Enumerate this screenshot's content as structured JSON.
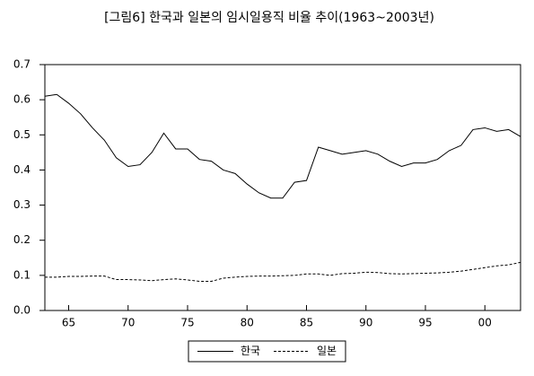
{
  "chart_data": {
    "type": "line",
    "title": "[그림6] 한국과 일본의 임시일용직 비율 추이(1963~2003년)",
    "x": [
      1963,
      1964,
      1965,
      1966,
      1967,
      1968,
      1969,
      1970,
      1971,
      1972,
      1973,
      1974,
      1975,
      1976,
      1977,
      1978,
      1979,
      1980,
      1981,
      1982,
      1983,
      1984,
      1985,
      1986,
      1987,
      1988,
      1989,
      1990,
      1991,
      1992,
      1993,
      1994,
      1995,
      1996,
      1997,
      1998,
      1999,
      2000,
      2001,
      2002,
      2003
    ],
    "series": [
      {
        "name": "한국",
        "color": "#000000",
        "linestyle": "solid",
        "values": [
          0.61,
          0.615,
          0.59,
          0.56,
          0.52,
          0.485,
          0.435,
          0.41,
          0.415,
          0.45,
          0.505,
          0.46,
          0.46,
          0.43,
          0.425,
          0.4,
          0.39,
          0.36,
          0.335,
          0.32,
          0.32,
          0.365,
          0.37,
          0.465,
          0.455,
          0.445,
          0.45,
          0.455,
          0.445,
          0.425,
          0.41,
          0.42,
          0.42,
          0.43,
          0.455,
          0.47,
          0.515,
          0.52,
          0.51,
          0.515,
          0.495
        ]
      },
      {
        "name": "일본",
        "color": "#000000",
        "linestyle": "dashed",
        "values": [
          0.095,
          0.095,
          0.097,
          0.097,
          0.098,
          0.098,
          0.088,
          0.088,
          0.087,
          0.085,
          0.088,
          0.09,
          0.087,
          0.083,
          0.083,
          0.092,
          0.095,
          0.097,
          0.098,
          0.098,
          0.099,
          0.1,
          0.104,
          0.104,
          0.1,
          0.105,
          0.106,
          0.109,
          0.108,
          0.105,
          0.104,
          0.105,
          0.106,
          0.107,
          0.109,
          0.112,
          0.117,
          0.122,
          0.127,
          0.13,
          0.137
        ]
      }
    ],
    "xlim": [
      1963,
      2003
    ],
    "xticks": [
      {
        "value": 1965,
        "label": "65"
      },
      {
        "value": 1970,
        "label": "70"
      },
      {
        "value": 1975,
        "label": "75"
      },
      {
        "value": 1980,
        "label": "80"
      },
      {
        "value": 1985,
        "label": "85"
      },
      {
        "value": 1990,
        "label": "90"
      },
      {
        "value": 1995,
        "label": "95"
      },
      {
        "value": 2000,
        "label": "00"
      }
    ],
    "ylim": [
      0,
      0.7
    ],
    "yticks": [
      {
        "value": 0,
        "label": "0.0"
      },
      0.1,
      0.2,
      0.3,
      0.4,
      0.5,
      0.6,
      0.7
    ],
    "grid": false,
    "legend": "bottom"
  }
}
